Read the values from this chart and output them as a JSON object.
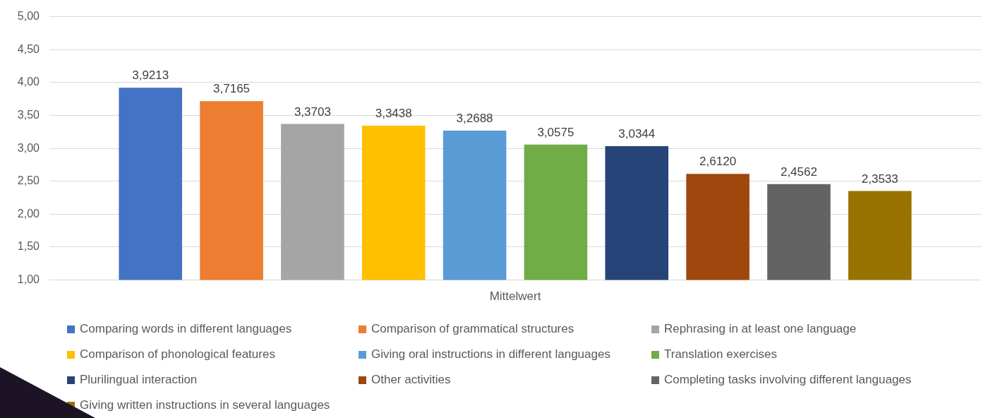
{
  "chart_data": {
    "type": "bar",
    "categories": [
      "Mittelwert"
    ],
    "series": [
      {
        "name": "Comparing words in different languages",
        "color": "#4472c4",
        "values": [
          3.9213
        ],
        "value_labels": [
          "3,9213"
        ]
      },
      {
        "name": "Comparison of grammatical structures",
        "color": "#ed7d31",
        "values": [
          3.7165
        ],
        "value_labels": [
          "3,7165"
        ]
      },
      {
        "name": "Rephrasing in at least one language",
        "color": "#a5a5a5",
        "values": [
          3.3703
        ],
        "value_labels": [
          "3,3703"
        ]
      },
      {
        "name": "Comparison of phonological features",
        "color": "#ffc000",
        "values": [
          3.3438
        ],
        "value_labels": [
          "3,3438"
        ]
      },
      {
        "name": "Giving oral instructions in different languages",
        "color": "#5b9bd5",
        "values": [
          3.2688
        ],
        "value_labels": [
          "3,2688"
        ]
      },
      {
        "name": "Translation exercises",
        "color": "#70ad47",
        "values": [
          3.0575
        ],
        "value_labels": [
          "3,0575"
        ]
      },
      {
        "name": "Plurilingual interaction",
        "color": "#264478",
        "values": [
          3.0344
        ],
        "value_labels": [
          "3,0344"
        ]
      },
      {
        "name": "Other activities",
        "color": "#9e480e",
        "values": [
          2.612
        ],
        "value_labels": [
          "2,6120"
        ]
      },
      {
        "name": "Completing tasks involving different languages",
        "color": "#636363",
        "values": [
          2.4562
        ],
        "value_labels": [
          "2,4562"
        ]
      },
      {
        "name": "Giving written instructions in several languages",
        "color": "#997300",
        "values": [
          2.3533
        ],
        "value_labels": [
          "2,3533"
        ]
      }
    ],
    "ylim": [
      1,
      5
    ],
    "yticks": [
      {
        "value": 1,
        "label": "1,00"
      },
      {
        "value": 1.5,
        "label": "1,50"
      },
      {
        "value": 2,
        "label": "2,00"
      },
      {
        "value": 2.5,
        "label": "2,50"
      },
      {
        "value": 3,
        "label": "3,00"
      },
      {
        "value": 3.5,
        "label": "3,50"
      },
      {
        "value": 4,
        "label": "4,00"
      },
      {
        "value": 4.5,
        "label": "4,50"
      },
      {
        "value": 5,
        "label": "5,00"
      }
    ],
    "grid": "y",
    "legend": "bottom"
  }
}
